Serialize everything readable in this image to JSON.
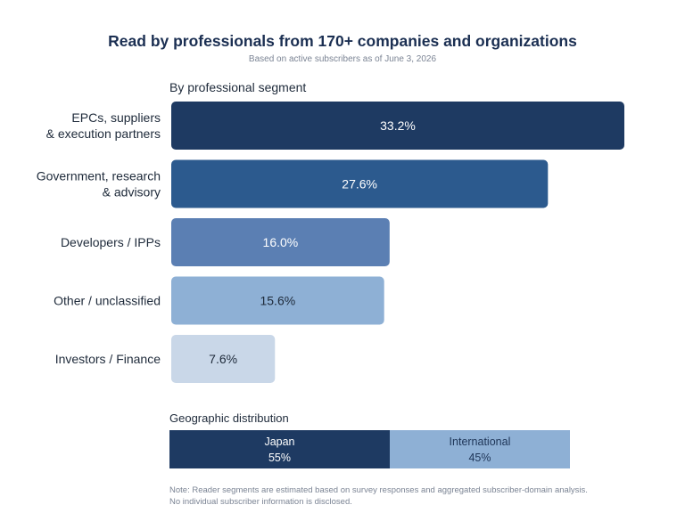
{
  "header": {
    "title": "Read by professionals from 170+ companies and organizations",
    "subtitle": "Based on active subscribers as of June 3, 2026"
  },
  "chart_data": [
    {
      "type": "bar",
      "orientation": "horizontal",
      "title": "By professional segment",
      "categories": [
        [
          "EPCs, suppliers",
          "& execution partners"
        ],
        [
          "Government, research",
          "& advisory"
        ],
        [
          "Developers / IPPs"
        ],
        [
          "Other / unclassified"
        ],
        [
          "Investors / Finance"
        ]
      ],
      "values": [
        33.2,
        27.6,
        16.0,
        15.6,
        7.6
      ],
      "value_labels": [
        "33.2%",
        "27.6%",
        "16.0%",
        "15.6%",
        "7.6%"
      ],
      "colors": [
        "#1e3a62",
        "#2c5a8e",
        "#5b7fb3",
        "#8eb0d5",
        "#c9d7e8"
      ],
      "label_colors": [
        "#ffffff",
        "#ffffff",
        "#ffffff",
        "#1e2a3a",
        "#1e2a3a"
      ],
      "xlim": [
        0,
        38.5
      ],
      "grid": false,
      "legend": "none"
    },
    {
      "type": "bar",
      "orientation": "horizontal-stacked",
      "title": "Geographic distribution",
      "series": [
        {
          "name": "Japan",
          "value": 55,
          "value_label": "55%",
          "color": "#1e3a62"
        },
        {
          "name": "International",
          "value": 45,
          "value_label": "45%",
          "color": "#8eb0d5"
        }
      ]
    }
  ],
  "note": {
    "line1": "Note: Reader segments are estimated based on survey responses and aggregated subscriber-domain analysis.",
    "line2": "No individual subscriber information is disclosed."
  }
}
